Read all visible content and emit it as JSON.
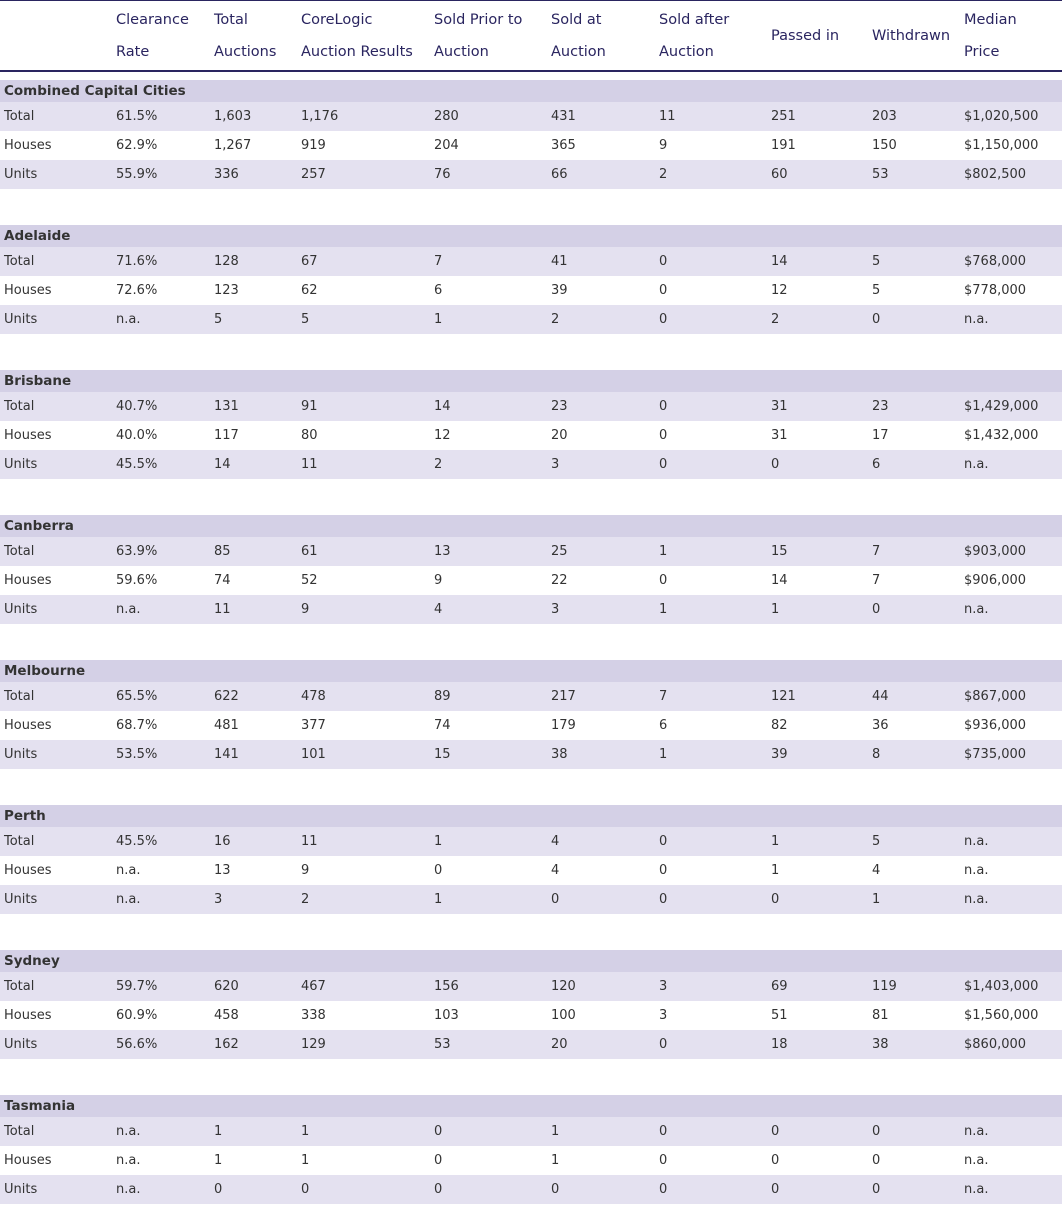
{
  "header": {
    "columns": [
      [
        "Clearance",
        "Rate"
      ],
      [
        "Total",
        "Auctions"
      ],
      [
        "CoreLogic",
        "Auction Results"
      ],
      [
        "Sold Prior to",
        "Auction"
      ],
      [
        "Sold at",
        "Auction"
      ],
      [
        "Sold after",
        "Auction"
      ],
      [
        "Passed in"
      ],
      [
        "Withdrawn"
      ],
      [
        "Median",
        "Price"
      ]
    ]
  },
  "groups": [
    {
      "name": "Combined Capital Cities",
      "rows": [
        [
          "Total",
          "61.5%",
          "1,603",
          "1,176",
          "280",
          "431",
          "11",
          "251",
          "203",
          "$1,020,500"
        ],
        [
          "Houses",
          "62.9%",
          "1,267",
          "919",
          "204",
          "365",
          "9",
          "191",
          "150",
          "$1,150,000"
        ],
        [
          "Units",
          "55.9%",
          "336",
          "257",
          "76",
          "66",
          "2",
          "60",
          "53",
          "$802,500"
        ]
      ]
    },
    {
      "name": "Adelaide",
      "rows": [
        [
          "Total",
          "71.6%",
          "128",
          "67",
          "7",
          "41",
          "0",
          "14",
          "5",
          "$768,000"
        ],
        [
          "Houses",
          "72.6%",
          "123",
          "62",
          "6",
          "39",
          "0",
          "12",
          "5",
          "$778,000"
        ],
        [
          "Units",
          "n.a.",
          "5",
          "5",
          "1",
          "2",
          "0",
          "2",
          "0",
          "n.a."
        ]
      ]
    },
    {
      "name": "Brisbane",
      "rows": [
        [
          "Total",
          "40.7%",
          "131",
          "91",
          "14",
          "23",
          "0",
          "31",
          "23",
          "$1,429,000"
        ],
        [
          "Houses",
          "40.0%",
          "117",
          "80",
          "12",
          "20",
          "0",
          "31",
          "17",
          "$1,432,000"
        ],
        [
          "Units",
          "45.5%",
          "14",
          "11",
          "2",
          "3",
          "0",
          "0",
          "6",
          "n.a."
        ]
      ]
    },
    {
      "name": "Canberra",
      "rows": [
        [
          "Total",
          "63.9%",
          "85",
          "61",
          "13",
          "25",
          "1",
          "15",
          "7",
          "$903,000"
        ],
        [
          "Houses",
          "59.6%",
          "74",
          "52",
          "9",
          "22",
          "0",
          "14",
          "7",
          "$906,000"
        ],
        [
          "Units",
          "n.a.",
          "11",
          "9",
          "4",
          "3",
          "1",
          "1",
          "0",
          "n.a."
        ]
      ]
    },
    {
      "name": "Melbourne",
      "rows": [
        [
          "Total",
          "65.5%",
          "622",
          "478",
          "89",
          "217",
          "7",
          "121",
          "44",
          "$867,000"
        ],
        [
          "Houses",
          "68.7%",
          "481",
          "377",
          "74",
          "179",
          "6",
          "82",
          "36",
          "$936,000"
        ],
        [
          "Units",
          "53.5%",
          "141",
          "101",
          "15",
          "38",
          "1",
          "39",
          "8",
          "$735,000"
        ]
      ]
    },
    {
      "name": "Perth",
      "rows": [
        [
          "Total",
          "45.5%",
          "16",
          "11",
          "1",
          "4",
          "0",
          "1",
          "5",
          "n.a."
        ],
        [
          "Houses",
          "n.a.",
          "13",
          "9",
          "0",
          "4",
          "0",
          "1",
          "4",
          "n.a."
        ],
        [
          "Units",
          "n.a.",
          "3",
          "2",
          "1",
          "0",
          "0",
          "0",
          "1",
          "n.a."
        ]
      ]
    },
    {
      "name": "Sydney",
      "rows": [
        [
          "Total",
          "59.7%",
          "620",
          "467",
          "156",
          "120",
          "3",
          "69",
          "119",
          "$1,403,000"
        ],
        [
          "Houses",
          "60.9%",
          "458",
          "338",
          "103",
          "100",
          "3",
          "51",
          "81",
          "$1,560,000"
        ],
        [
          "Units",
          "56.6%",
          "162",
          "129",
          "53",
          "20",
          "0",
          "18",
          "38",
          "$860,000"
        ]
      ]
    },
    {
      "name": "Tasmania",
      "rows": [
        [
          "Total",
          "n.a.",
          "1",
          "1",
          "0",
          "1",
          "0",
          "0",
          "0",
          "n.a."
        ],
        [
          "Houses",
          "n.a.",
          "1",
          "1",
          "0",
          "1",
          "0",
          "0",
          "0",
          "n.a."
        ],
        [
          "Units",
          "n.a.",
          "0",
          "0",
          "0",
          "0",
          "0",
          "0",
          "0",
          "n.a."
        ]
      ]
    }
  ]
}
